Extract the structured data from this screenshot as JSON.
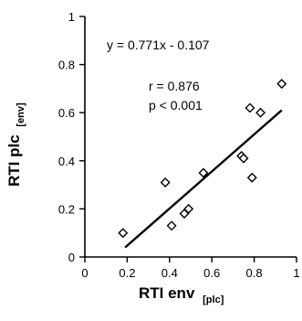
{
  "chart_data": {
    "type": "scatter",
    "title": "",
    "xlabel": {
      "main": "RTI env",
      "subscript": "[plc]"
    },
    "ylabel": {
      "main": "RTI plc",
      "subscript": "[env]"
    },
    "xlim": [
      0,
      1
    ],
    "ylim": [
      0,
      1
    ],
    "xticks": [
      "0",
      "0.2",
      "0.4",
      "0.6",
      "0.8",
      "1"
    ],
    "yticks": [
      "0",
      "0.2",
      "0.4",
      "0.6",
      "0.8",
      "1"
    ],
    "grid": false,
    "marker": "diamond",
    "points": [
      {
        "x": 0.18,
        "y": 0.1
      },
      {
        "x": 0.38,
        "y": 0.31
      },
      {
        "x": 0.41,
        "y": 0.13
      },
      {
        "x": 0.47,
        "y": 0.18
      },
      {
        "x": 0.49,
        "y": 0.2
      },
      {
        "x": 0.56,
        "y": 0.35
      },
      {
        "x": 0.74,
        "y": 0.42
      },
      {
        "x": 0.75,
        "y": 0.41
      },
      {
        "x": 0.78,
        "y": 0.62
      },
      {
        "x": 0.79,
        "y": 0.33
      },
      {
        "x": 0.83,
        "y": 0.6
      },
      {
        "x": 0.93,
        "y": 0.72
      }
    ],
    "regression_line": {
      "x": [
        0.19,
        0.93
      ],
      "slope": 0.771,
      "intercept": -0.107
    },
    "annotations": {
      "equation": "y = 0.771x - 0.107",
      "r": "r = 0.876",
      "p": "p < 0.001"
    }
  }
}
